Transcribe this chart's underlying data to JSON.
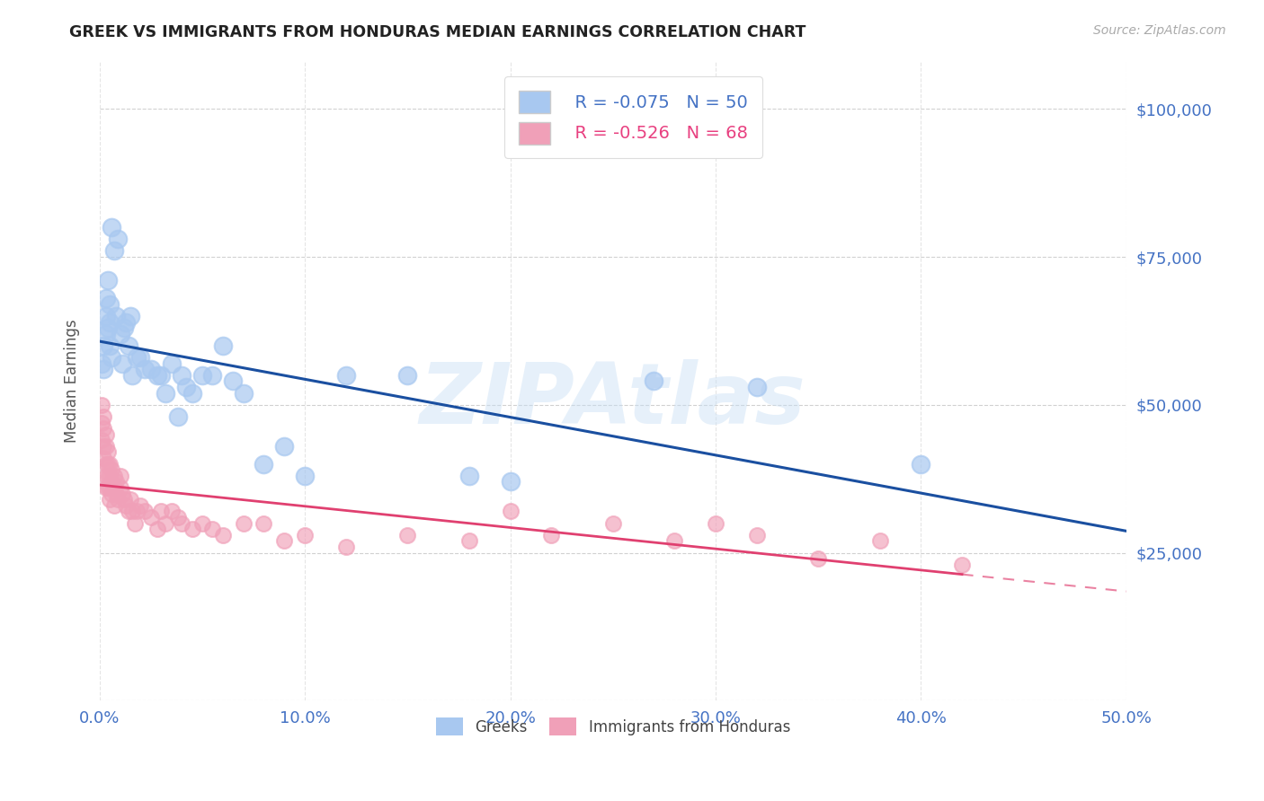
{
  "title": "GREEK VS IMMIGRANTS FROM HONDURAS MEDIAN EARNINGS CORRELATION CHART",
  "source": "Source: ZipAtlas.com",
  "ylabel": "Median Earnings",
  "yticks": [
    0,
    25000,
    50000,
    75000,
    100000
  ],
  "ytick_labels": [
    "",
    "$25,000",
    "$50,000",
    "$75,000",
    "$100,000"
  ],
  "xlim": [
    0.0,
    0.5
  ],
  "ylim": [
    0,
    108000
  ],
  "watermark": "ZIPAtlas",
  "legend_greek_R": "R = -0.075",
  "legend_greek_N": "N = 50",
  "legend_honduran_R": "R = -0.526",
  "legend_honduran_N": "N = 68",
  "greek_color": "#a8c8f0",
  "honduran_color": "#f0a0b8",
  "greek_line_color": "#1a4fa0",
  "honduran_line_color": "#e04070",
  "background_color": "#ffffff",
  "greek_points_x": [
    0.001,
    0.002,
    0.002,
    0.003,
    0.003,
    0.003,
    0.004,
    0.004,
    0.005,
    0.005,
    0.005,
    0.006,
    0.006,
    0.007,
    0.008,
    0.009,
    0.01,
    0.011,
    0.012,
    0.013,
    0.014,
    0.015,
    0.016,
    0.018,
    0.02,
    0.022,
    0.025,
    0.028,
    0.03,
    0.032,
    0.035,
    0.038,
    0.04,
    0.042,
    0.045,
    0.05,
    0.055,
    0.06,
    0.065,
    0.07,
    0.08,
    0.09,
    0.1,
    0.12,
    0.15,
    0.18,
    0.2,
    0.27,
    0.32,
    0.4
  ],
  "greek_points_y": [
    57000,
    60000,
    56000,
    62000,
    65000,
    68000,
    63000,
    71000,
    67000,
    60000,
    64000,
    58000,
    80000,
    76000,
    65000,
    78000,
    62000,
    57000,
    63000,
    64000,
    60000,
    65000,
    55000,
    58000,
    58000,
    56000,
    56000,
    55000,
    55000,
    52000,
    57000,
    48000,
    55000,
    53000,
    52000,
    55000,
    55000,
    60000,
    54000,
    52000,
    40000,
    43000,
    38000,
    55000,
    55000,
    38000,
    37000,
    54000,
    53000,
    40000
  ],
  "honduran_points_x": [
    0.001,
    0.001,
    0.001,
    0.002,
    0.002,
    0.002,
    0.002,
    0.003,
    0.003,
    0.003,
    0.003,
    0.003,
    0.004,
    0.004,
    0.004,
    0.004,
    0.005,
    0.005,
    0.005,
    0.005,
    0.006,
    0.006,
    0.006,
    0.007,
    0.007,
    0.007,
    0.008,
    0.008,
    0.009,
    0.01,
    0.01,
    0.011,
    0.012,
    0.013,
    0.014,
    0.015,
    0.016,
    0.017,
    0.018,
    0.02,
    0.022,
    0.025,
    0.028,
    0.03,
    0.032,
    0.035,
    0.038,
    0.04,
    0.045,
    0.05,
    0.055,
    0.06,
    0.07,
    0.08,
    0.09,
    0.1,
    0.12,
    0.15,
    0.18,
    0.2,
    0.22,
    0.25,
    0.28,
    0.3,
    0.32,
    0.35,
    0.38,
    0.42
  ],
  "honduran_points_y": [
    50000,
    47000,
    44000,
    48000,
    46000,
    43000,
    41000,
    45000,
    43000,
    40000,
    38000,
    36000,
    42000,
    40000,
    38000,
    36000,
    40000,
    38000,
    36000,
    34000,
    39000,
    37000,
    35000,
    38000,
    36000,
    33000,
    37000,
    35000,
    34000,
    38000,
    36000,
    35000,
    34000,
    33000,
    32000,
    34000,
    32000,
    30000,
    32000,
    33000,
    32000,
    31000,
    29000,
    32000,
    30000,
    32000,
    31000,
    30000,
    29000,
    30000,
    29000,
    28000,
    30000,
    30000,
    27000,
    28000,
    26000,
    28000,
    27000,
    32000,
    28000,
    30000,
    27000,
    30000,
    28000,
    24000,
    27000,
    23000
  ]
}
